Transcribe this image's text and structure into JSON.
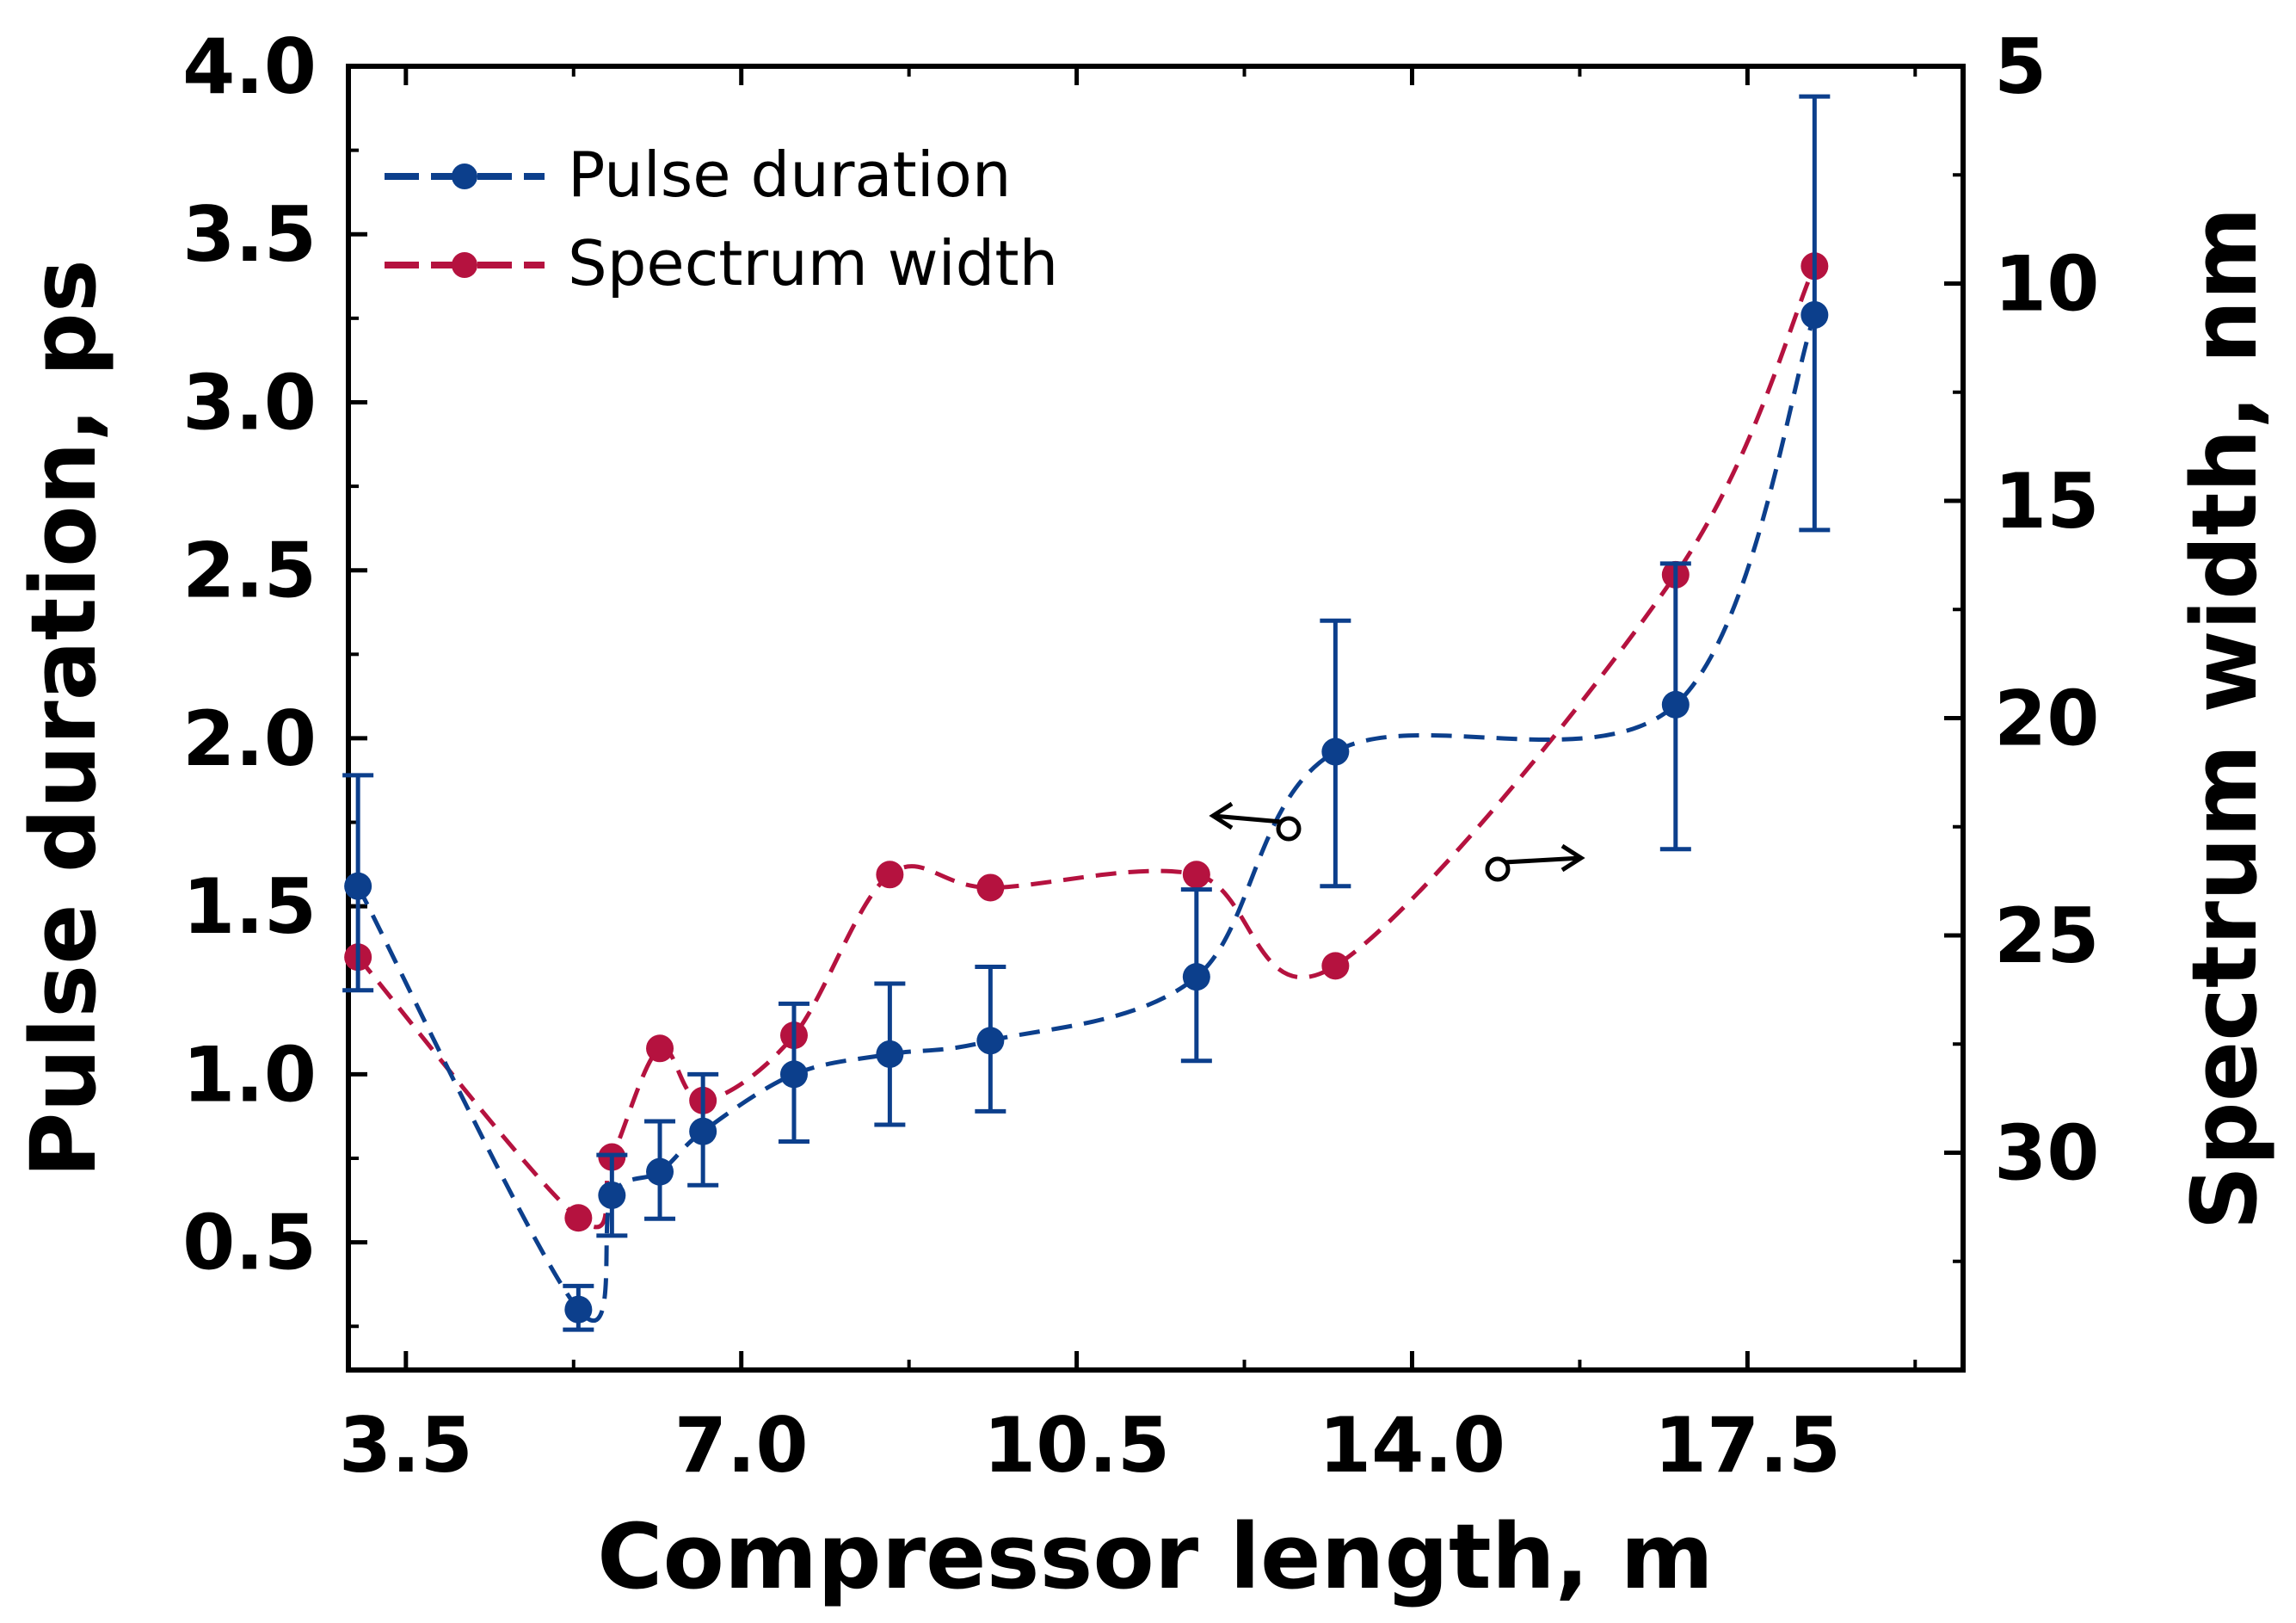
{
  "chart_data": {
    "type": "line",
    "x_axis": {
      "label": "Compressor length, m",
      "range": [
        2.9,
        19.75
      ],
      "ticks": [
        3.5,
        7.0,
        10.5,
        14.0,
        17.5
      ],
      "tick_labels": [
        "3.5",
        "7.0",
        "10.5",
        "14.0",
        "17.5"
      ]
    },
    "y_left_axis": {
      "label": "Pulse duration, ps",
      "range": [
        0.12,
        4.0
      ],
      "ticks": [
        0.5,
        1.0,
        1.5,
        2.0,
        2.5,
        3.0,
        3.5,
        4.0
      ],
      "tick_labels": [
        "0.5",
        "1.0",
        "1.5",
        "2.0",
        "2.5",
        "3.0",
        "3.5",
        "4.0"
      ]
    },
    "y_right_axis": {
      "label": "Spectrum width, nm",
      "range": [
        5,
        35
      ],
      "inverted": true,
      "ticks": [
        5,
        10,
        15,
        20,
        25,
        30
      ],
      "tick_labels": [
        "5",
        "10",
        "15",
        "20",
        "25",
        "30"
      ]
    },
    "series": [
      {
        "name": "Pulse duration",
        "axis": "left",
        "color": "#0c3f8c",
        "x": [
          3.0,
          5.3,
          5.65,
          6.15,
          6.6,
          7.55,
          8.55,
          9.6,
          11.75,
          13.2,
          16.75,
          18.2
        ],
        "y": [
          1.56,
          0.3,
          0.64,
          0.71,
          0.83,
          1.0,
          1.06,
          1.1,
          1.29,
          1.96,
          2.1,
          3.26
        ],
        "err_low": [
          1.25,
          0.24,
          0.52,
          0.57,
          0.67,
          0.8,
          0.85,
          0.89,
          1.04,
          1.56,
          1.67,
          2.62
        ],
        "err_high": [
          1.89,
          0.37,
          0.76,
          0.86,
          1.0,
          1.21,
          1.27,
          1.32,
          1.55,
          2.35,
          2.52,
          3.91
        ]
      },
      {
        "name": "Spectrum width",
        "axis": "right",
        "color": "#b5123f",
        "x": [
          3.0,
          5.3,
          5.65,
          6.15,
          6.6,
          7.55,
          8.55,
          9.6,
          11.75,
          13.2,
          16.75,
          18.2
        ],
        "y": [
          25.5,
          31.5,
          30.1,
          27.6,
          28.8,
          27.3,
          23.6,
          23.9,
          23.6,
          25.7,
          16.7,
          9.6
        ]
      }
    ],
    "legend": {
      "position": "top-left",
      "entries": [
        "Pulse duration",
        "Spectrum width"
      ]
    },
    "annotations": [
      {
        "type": "arrow-left",
        "meaning": "points to left axis (Pulse duration)"
      },
      {
        "type": "arrow-right",
        "meaning": "points to right axis (Spectrum width)"
      }
    ]
  }
}
